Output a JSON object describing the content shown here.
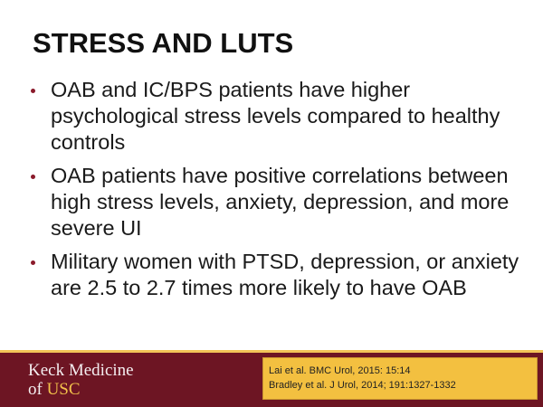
{
  "slide": {
    "title": "STRESS AND LUTS",
    "bullets": [
      "OAB and IC/BPS patients have higher psychological stress levels compared to healthy controls",
      "OAB patients have positive correlations between high stress levels, anxiety, depression, and more severe UI",
      "Military women with PTSD, depression, or anxiety are 2.5 to 2.7 times more likely to have OAB"
    ]
  },
  "footer": {
    "logo_line1": "Keck Medicine",
    "logo_of": "of ",
    "logo_usc": "USC",
    "citations": [
      "Lai et al. BMC Urol, 2015: 15:14",
      "Bradley et al. J Urol, 2014; 191:1327-1332"
    ]
  },
  "colors": {
    "footer_bg": "#6d1523",
    "accent_gold": "#f3c040",
    "bullet": "#8b1a2b"
  }
}
